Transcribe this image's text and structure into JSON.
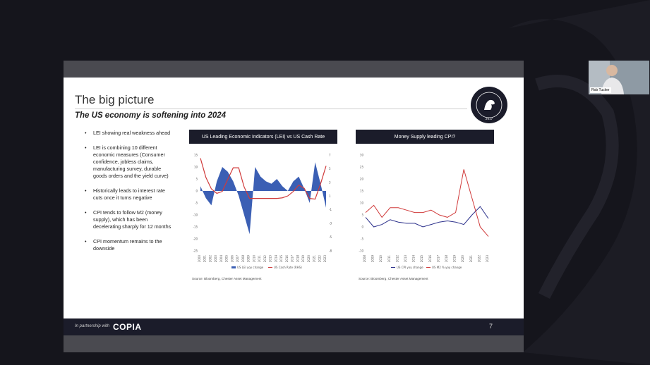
{
  "slide": {
    "title": "The big picture",
    "subtitle": "The US economy is softening into 2024",
    "logo_text": "CHESTER ASSET MANAGEMENT",
    "logo_year": "2017",
    "bullets": [
      "LEI showing real weakness ahead",
      "LEI is combining 10 different economic measures (Consumer confidence, jobless claims, manufacturing survey, durable goods orders and the yield curve)",
      "Historically leads to interest rate cuts once it turns negative",
      "CPI tends to follow M2 (money supply), which has been decelerating sharply for 12 months",
      "CPI momentum remains to the downside"
    ],
    "footer": {
      "partner_text": "In partnership with",
      "brand": "COPIA",
      "page_number": "7"
    }
  },
  "chart_data": [
    {
      "type": "area",
      "title": "US  Leading Economic Indicators (LEI) vs US Cash Rate",
      "source": "Source: Bloomberg, Chester Asset Management",
      "x": [
        2000,
        2001,
        2002,
        2003,
        2004,
        2005,
        2006,
        2007,
        2008,
        2009,
        2010,
        2011,
        2012,
        2013,
        2014,
        2015,
        2016,
        2017,
        2018,
        2019,
        2020,
        2021,
        2022,
        2023
      ],
      "left_axis": {
        "ylim": [
          -25,
          15
        ],
        "ticks": [
          "15",
          "10",
          "5",
          "0",
          "-5",
          "-10",
          "-15",
          "-20",
          "-25"
        ]
      },
      "right_axis": {
        "ylim": [
          -8,
          7
        ],
        "ticks": [
          "7",
          "5",
          "3",
          "1",
          "-1",
          "-3",
          "-5",
          "-8"
        ]
      },
      "series": [
        {
          "name": "US LEI yoy change",
          "color": "#3b5fb4",
          "axis": "left",
          "values": [
            2,
            -3,
            -6,
            4,
            10,
            8,
            4,
            -2,
            -10,
            -18,
            10,
            6,
            4,
            3,
            5,
            2,
            0,
            4,
            6,
            1,
            -5,
            12,
            3,
            -7
          ]
        },
        {
          "name": "US Cash Rate (RHS)",
          "color": "#d03a3a",
          "axis": "right",
          "values": [
            6.5,
            3.5,
            1.7,
            1.0,
            1.3,
            3.2,
            5.0,
            5.0,
            2.0,
            0.2,
            0.2,
            0.2,
            0.2,
            0.2,
            0.2,
            0.3,
            0.6,
            1.3,
            2.3,
            1.8,
            0.2,
            0.1,
            2.5,
            5.3
          ]
        }
      ]
    },
    {
      "type": "line",
      "title": "Money Supply leading CPI?",
      "source": "Source: Bloomberg, Chester Asset Management",
      "x": [
        2008,
        2009,
        2010,
        2011,
        2012,
        2013,
        2014,
        2015,
        2016,
        2017,
        2018,
        2019,
        2020,
        2021,
        2022,
        2023
      ],
      "ylim": [
        -10,
        30
      ],
      "y_ticks": [
        "30",
        "25",
        "20",
        "15",
        "10",
        "5",
        "0",
        "-5",
        "-10"
      ],
      "series": [
        {
          "name": "US CPI yoy change",
          "color": "#2a2f8a",
          "values": [
            4,
            0,
            1,
            3,
            2,
            1.5,
            1.5,
            0,
            1,
            2,
            2.5,
            2,
            1,
            5,
            8.5,
            3.5
          ]
        },
        {
          "name": "US M2 % yoy change",
          "color": "#d03a3a",
          "values": [
            6,
            9,
            4,
            8,
            8,
            7,
            6,
            6,
            7,
            5,
            4,
            6,
            24,
            12,
            0,
            -4
          ]
        }
      ]
    }
  ],
  "webcam": {
    "name": "Rob Tucker"
  }
}
